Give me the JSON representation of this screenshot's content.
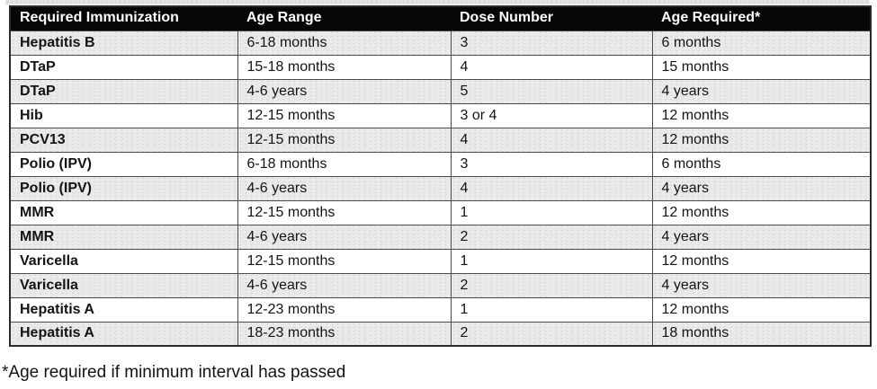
{
  "table": {
    "columns": [
      "Required Immunization",
      "Age Range",
      "Dose Number",
      "Age Required*"
    ],
    "rows": [
      [
        "Hepatitis B",
        "6-18 months",
        "3",
        "6 months"
      ],
      [
        "DTaP",
        "15-18 months",
        "4",
        "15 months"
      ],
      [
        "DTaP",
        "4-6 years",
        "5",
        "4 years"
      ],
      [
        "Hib",
        "12-15 months",
        "3 or 4",
        "12 months"
      ],
      [
        "PCV13",
        "12-15 months",
        "4",
        "12 months"
      ],
      [
        "Polio (IPV)",
        "6-18 months",
        "3",
        "6 months"
      ],
      [
        "Polio (IPV)",
        "4-6 years",
        "4",
        "4 years"
      ],
      [
        "MMR",
        "12-15 months",
        "1",
        "12 months"
      ],
      [
        "MMR",
        "4-6 years",
        "2",
        "4 years"
      ],
      [
        "Varicella",
        "12-15 months",
        "1",
        "12 months"
      ],
      [
        "Varicella",
        "4-6 years",
        "2",
        "4 years"
      ],
      [
        "Hepatitis A",
        "12-23 months",
        "1",
        "12 months"
      ],
      [
        "Hepatitis A",
        "18-23 months",
        "2",
        "18 months"
      ]
    ],
    "footnote": "*Age required if minimum interval has passed"
  },
  "colors": {
    "header_bg": "#060606",
    "header_text": "#ffffff",
    "row_shaded": "#eaeae8",
    "row_white": "#ffffff",
    "grid_line": "#4c4c4c",
    "outer_border": "#2a2a2a",
    "body_text": "#131313"
  }
}
